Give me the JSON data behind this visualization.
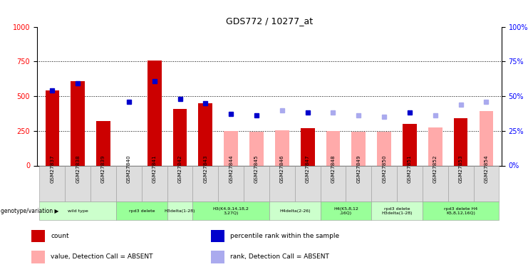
{
  "title": "GDS772 / 10277_at",
  "samples": [
    "GSM27837",
    "GSM27838",
    "GSM27839",
    "GSM27840",
    "GSM27841",
    "GSM27842",
    "GSM27843",
    "GSM27844",
    "GSM27845",
    "GSM27846",
    "GSM27847",
    "GSM27848",
    "GSM27849",
    "GSM27850",
    "GSM27851",
    "GSM27852",
    "GSM27853",
    "GSM27854"
  ],
  "counts": [
    540,
    610,
    320,
    null,
    755,
    410,
    450,
    null,
    null,
    null,
    270,
    null,
    null,
    null,
    300,
    null,
    340,
    null
  ],
  "absent_values": [
    null,
    null,
    null,
    null,
    null,
    null,
    null,
    250,
    245,
    255,
    null,
    248,
    245,
    242,
    null,
    275,
    null,
    390
  ],
  "percentile_ranks": [
    54,
    59,
    null,
    46,
    61,
    48,
    45,
    37,
    36,
    null,
    38,
    null,
    null,
    null,
    38,
    null,
    null,
    null
  ],
  "absent_ranks": [
    null,
    null,
    null,
    null,
    null,
    null,
    null,
    null,
    null,
    40,
    null,
    38,
    36,
    35,
    null,
    36,
    44,
    46
  ],
  "genotype_groups": [
    {
      "label": "wild type",
      "start": 0,
      "end": 3,
      "color": "#ccffcc"
    },
    {
      "label": "rpd3 delete",
      "start": 3,
      "end": 5,
      "color": "#99ff99"
    },
    {
      "label": "H3delta(1-28)",
      "start": 5,
      "end": 6,
      "color": "#ccffcc"
    },
    {
      "label": "H3(K4,9,14,18,2\n3,27Q)",
      "start": 6,
      "end": 9,
      "color": "#99ff99"
    },
    {
      "label": "H4delta(2-26)",
      "start": 9,
      "end": 11,
      "color": "#ccffcc"
    },
    {
      "label": "H4(K5,8,12\n,16Q)",
      "start": 11,
      "end": 13,
      "color": "#99ff99"
    },
    {
      "label": "rpd3 delete\nH3delta(1-28)",
      "start": 13,
      "end": 15,
      "color": "#ccffcc"
    },
    {
      "label": "rpd3 delete H4\nK5,8,12,16Q)",
      "start": 15,
      "end": 18,
      "color": "#99ff99"
    }
  ],
  "bar_color_present": "#cc0000",
  "bar_color_absent": "#ffaaaa",
  "dot_color_present": "#0000cc",
  "dot_color_absent": "#aaaaee",
  "ylim_left": [
    0,
    1000
  ],
  "ylim_right": [
    0,
    100
  ],
  "yticks_left": [
    0,
    250,
    500,
    750,
    1000
  ],
  "yticks_right": [
    0,
    25,
    50,
    75,
    100
  ],
  "legend_items": [
    {
      "label": "count",
      "color": "#cc0000"
    },
    {
      "label": "percentile rank within the sample",
      "color": "#0000cc"
    },
    {
      "label": "value, Detection Call = ABSENT",
      "color": "#ffaaaa"
    },
    {
      "label": "rank, Detection Call = ABSENT",
      "color": "#aaaaee"
    }
  ],
  "genotype_label": "genotype/variation"
}
